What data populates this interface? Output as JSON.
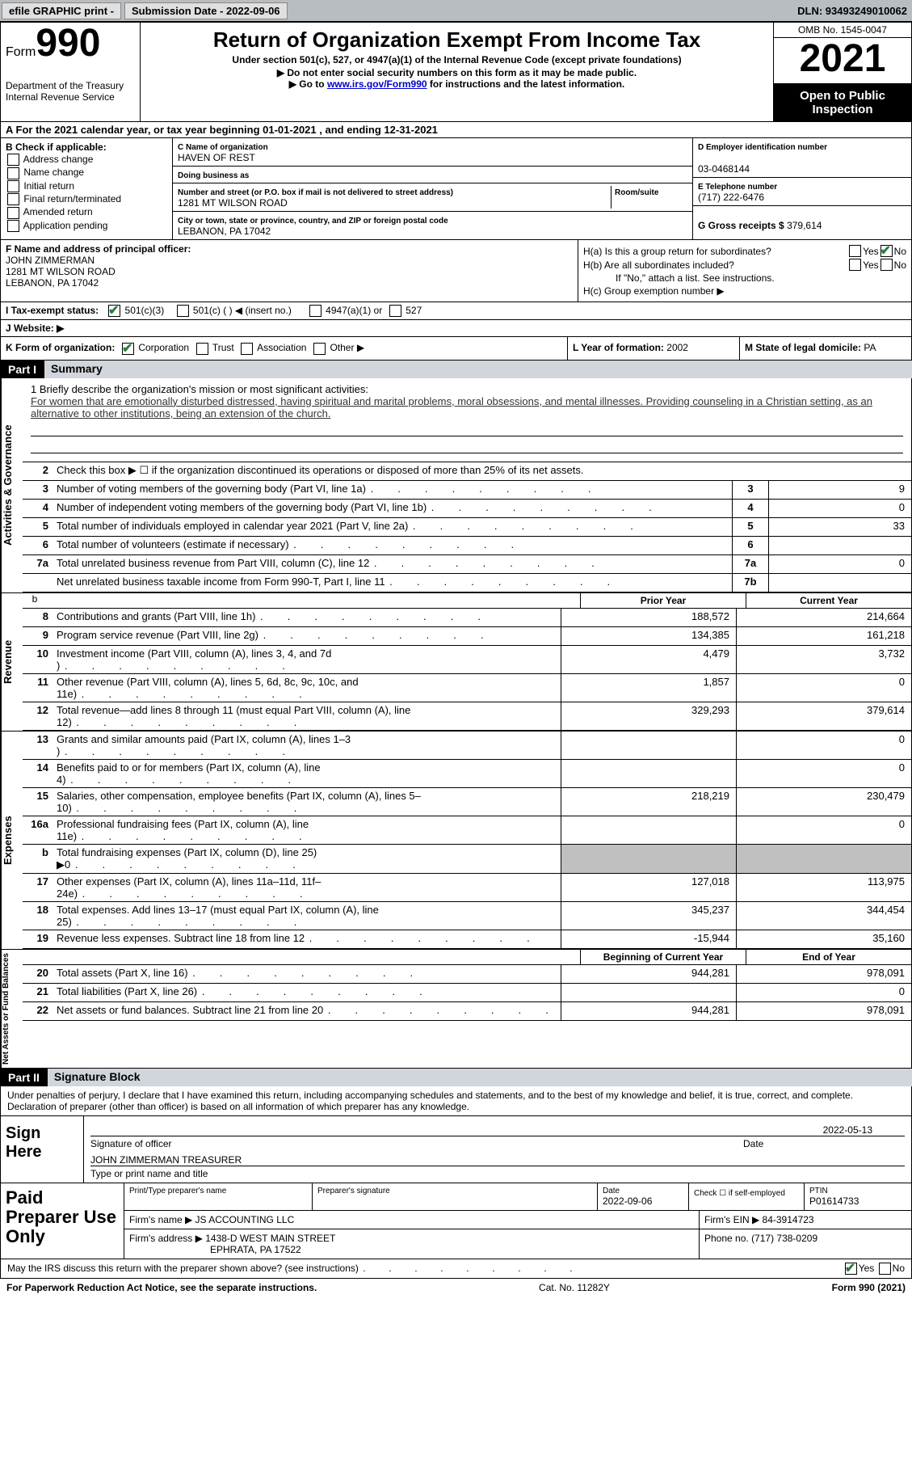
{
  "topbar": {
    "efile": "efile GRAPHIC print -",
    "submission": "Submission Date - 2022-09-06",
    "dln": "DLN: 93493249010062"
  },
  "header": {
    "form_word": "Form",
    "form_num": "990",
    "dept": "Department of the Treasury",
    "irs": "Internal Revenue Service",
    "title": "Return of Organization Exempt From Income Tax",
    "sub1": "Under section 501(c), 527, or 4947(a)(1) of the Internal Revenue Code (except private foundations)",
    "sub2": "▶ Do not enter social security numbers on this form as it may be made public.",
    "sub3_pre": "▶ Go to ",
    "sub3_link": "www.irs.gov/Form990",
    "sub3_post": " for instructions and the latest information.",
    "omb": "OMB No. 1545-0047",
    "year": "2021",
    "open": "Open to Public Inspection"
  },
  "row_a": "A For the 2021 calendar year, or tax year beginning 01-01-2021   , and ending 12-31-2021",
  "section_b": {
    "label": "B Check if applicable:",
    "opts": [
      "Address change",
      "Name change",
      "Initial return",
      "Final return/terminated",
      "Amended return",
      "Application pending"
    ]
  },
  "section_c": {
    "name_lbl": "C Name of organization",
    "name": "HAVEN OF REST",
    "dba_lbl": "Doing business as",
    "dba": "",
    "addr_lbl": "Number and street (or P.O. box if mail is not delivered to street address)",
    "room_lbl": "Room/suite",
    "addr": "1281 MT WILSON ROAD",
    "city_lbl": "City or town, state or province, country, and ZIP or foreign postal code",
    "city": "LEBANON, PA  17042"
  },
  "section_d": {
    "ein_lbl": "D Employer identification number",
    "ein": "03-0468144",
    "phone_lbl": "E Telephone number",
    "phone": "(717) 222-6476",
    "gross_lbl": "G Gross receipts $",
    "gross": "379,614"
  },
  "section_f": {
    "lbl": "F Name and address of principal officer:",
    "name": "JOHN ZIMMERMAN",
    "addr1": "1281 MT WILSON ROAD",
    "addr2": "LEBANON, PA   17042"
  },
  "section_h": {
    "ha": "H(a)  Is this a group return for subordinates?",
    "hb": "H(b)  Are all subordinates included?",
    "hb_note": "If \"No,\" attach a list. See instructions.",
    "hc": "H(c)  Group exemption number ▶"
  },
  "section_i": {
    "lbl": "I   Tax-exempt status:",
    "o1": "501(c)(3)",
    "o2": "501(c) (  ) ◀ (insert no.)",
    "o3": "4947(a)(1) or",
    "o4": "527"
  },
  "section_j": {
    "lbl": "J   Website: ▶"
  },
  "section_k": {
    "lbl": "K Form of organization:",
    "o1": "Corporation",
    "o2": "Trust",
    "o3": "Association",
    "o4": "Other ▶"
  },
  "section_l": {
    "lbl": "L Year of formation:",
    "val": "2002"
  },
  "section_m": {
    "lbl": "M State of legal domicile:",
    "val": "PA"
  },
  "part1": {
    "label": "Part I",
    "title": "Summary"
  },
  "mission": {
    "lbl": "1   Briefly describe the organization's mission or most significant activities:",
    "desc": "For women that are emotionally disturbed distressed, having spiritual and marital problems, moral obsessions, and mental illnesses. Providing counseling in a Christian setting, as an alternative to other institutions, being an extension of the church."
  },
  "line2": "Check this box ▶ ☐ if the organization discontinued its operations or disposed of more than 25% of its net assets.",
  "gov_rows": [
    {
      "n": "3",
      "txt": "Number of voting members of the governing body (Part VI, line 1a)",
      "box": "3",
      "val": "9"
    },
    {
      "n": "4",
      "txt": "Number of independent voting members of the governing body (Part VI, line 1b)",
      "box": "4",
      "val": "0"
    },
    {
      "n": "5",
      "txt": "Total number of individuals employed in calendar year 2021 (Part V, line 2a)",
      "box": "5",
      "val": "33"
    },
    {
      "n": "6",
      "txt": "Total number of volunteers (estimate if necessary)",
      "box": "6",
      "val": ""
    },
    {
      "n": "7a",
      "txt": "Total unrelated business revenue from Part VIII, column (C), line 12",
      "box": "7a",
      "val": "0"
    },
    {
      "n": "",
      "txt": "Net unrelated business taxable income from Form 990-T, Part I, line 11",
      "box": "7b",
      "val": ""
    }
  ],
  "col_headers": {
    "py": "Prior Year",
    "cy": "Current Year"
  },
  "rev_rows": [
    {
      "n": "8",
      "txt": "Contributions and grants (Part VIII, line 1h)",
      "py": "188,572",
      "cy": "214,664"
    },
    {
      "n": "9",
      "txt": "Program service revenue (Part VIII, line 2g)",
      "py": "134,385",
      "cy": "161,218"
    },
    {
      "n": "10",
      "txt": "Investment income (Part VIII, column (A), lines 3, 4, and 7d )",
      "py": "4,479",
      "cy": "3,732"
    },
    {
      "n": "11",
      "txt": "Other revenue (Part VIII, column (A), lines 5, 6d, 8c, 9c, 10c, and 11e)",
      "py": "1,857",
      "cy": "0"
    },
    {
      "n": "12",
      "txt": "Total revenue—add lines 8 through 11 (must equal Part VIII, column (A), line 12)",
      "py": "329,293",
      "cy": "379,614"
    }
  ],
  "exp_rows": [
    {
      "n": "13",
      "txt": "Grants and similar amounts paid (Part IX, column (A), lines 1–3 )",
      "py": "",
      "cy": "0"
    },
    {
      "n": "14",
      "txt": "Benefits paid to or for members (Part IX, column (A), line 4)",
      "py": "",
      "cy": "0"
    },
    {
      "n": "15",
      "txt": "Salaries, other compensation, employee benefits (Part IX, column (A), lines 5–10)",
      "py": "218,219",
      "cy": "230,479"
    },
    {
      "n": "16a",
      "txt": "Professional fundraising fees (Part IX, column (A), line 11e)",
      "py": "",
      "cy": "0"
    },
    {
      "n": "b",
      "txt": "Total fundraising expenses (Part IX, column (D), line 25) ▶0",
      "py": "GREY",
      "cy": "GREY"
    },
    {
      "n": "17",
      "txt": "Other expenses (Part IX, column (A), lines 11a–11d, 11f–24e)",
      "py": "127,018",
      "cy": "113,975"
    },
    {
      "n": "18",
      "txt": "Total expenses. Add lines 13–17 (must equal Part IX, column (A), line 25)",
      "py": "345,237",
      "cy": "344,454"
    },
    {
      "n": "19",
      "txt": "Revenue less expenses. Subtract line 18 from line 12",
      "py": "-15,944",
      "cy": "35,160"
    }
  ],
  "na_headers": {
    "py": "Beginning of Current Year",
    "cy": "End of Year"
  },
  "na_rows": [
    {
      "n": "20",
      "txt": "Total assets (Part X, line 16)",
      "py": "944,281",
      "cy": "978,091"
    },
    {
      "n": "21",
      "txt": "Total liabilities (Part X, line 26)",
      "py": "",
      "cy": "0"
    },
    {
      "n": "22",
      "txt": "Net assets or fund balances. Subtract line 21 from line 20",
      "py": "944,281",
      "cy": "978,091"
    }
  ],
  "side_labels": {
    "gov": "Activities & Governance",
    "rev": "Revenue",
    "exp": "Expenses",
    "na": "Net Assets or Fund Balances"
  },
  "part2": {
    "label": "Part II",
    "title": "Signature Block"
  },
  "penalty": "Under penalties of perjury, I declare that I have examined this return, including accompanying schedules and statements, and to the best of my knowledge and belief, it is true, correct, and complete. Declaration of preparer (other than officer) is based on all information of which preparer has any knowledge.",
  "sign": {
    "here": "Sign Here",
    "sig_lbl": "Signature of officer",
    "date_lbl": "Date",
    "date": "2022-05-13",
    "name": "JOHN ZIMMERMAN  TREASURER",
    "name_lbl": "Type or print name and title"
  },
  "paid": {
    "title": "Paid Preparer Use Only",
    "prep_name_lbl": "Print/Type preparer's name",
    "prep_sig_lbl": "Preparer's signature",
    "prep_date_lbl": "Date",
    "prep_date": "2022-09-06",
    "self_lbl": "Check ☐ if self-employed",
    "ptin_lbl": "PTIN",
    "ptin": "P01614733",
    "firm_name_lbl": "Firm's name    ▶",
    "firm_name": "JS ACCOUNTING LLC",
    "firm_ein_lbl": "Firm's EIN ▶",
    "firm_ein": "84-3914723",
    "firm_addr_lbl": "Firm's address ▶",
    "firm_addr1": "1438-D WEST MAIN STREET",
    "firm_addr2": "EPHRATA, PA   17522",
    "phone_lbl": "Phone no.",
    "phone": "(717) 738-0209"
  },
  "discuss": "May the IRS discuss this return with the preparer shown above? (see instructions)",
  "footer": {
    "notice": "For Paperwork Reduction Act Notice, see the separate instructions.",
    "cat": "Cat. No. 11282Y",
    "form": "Form 990 (2021)"
  },
  "yes": "Yes",
  "no": "No"
}
